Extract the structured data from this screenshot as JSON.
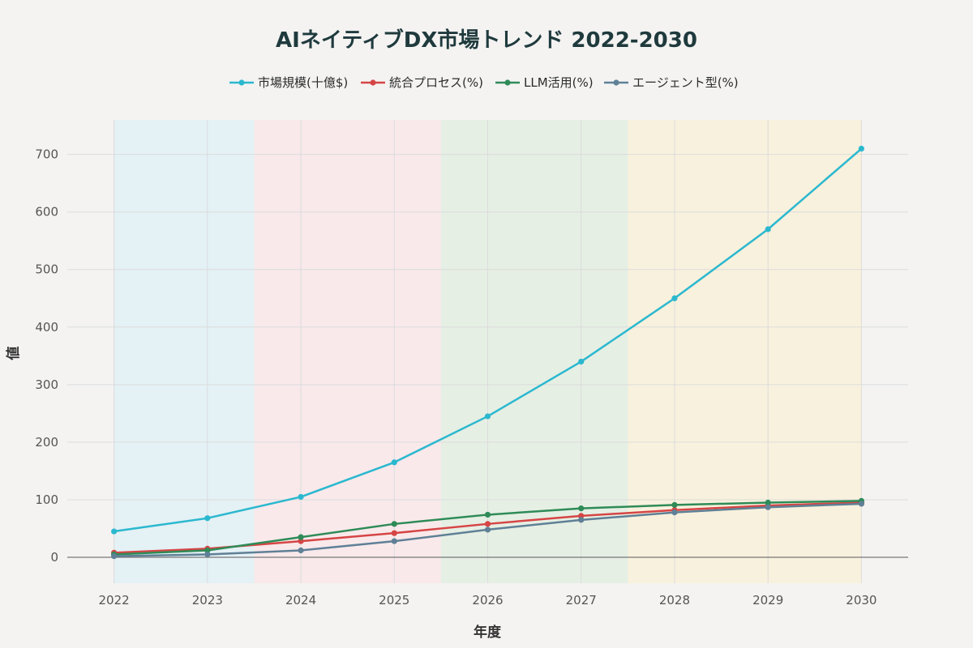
{
  "chart_data": {
    "type": "line",
    "title": "AIネイティブDX市場トレンド 2022-2030",
    "xlabel": "年度",
    "ylabel": "値",
    "x": [
      2022,
      2023,
      2024,
      2025,
      2026,
      2027,
      2028,
      2029,
      2030
    ],
    "x_tick_labels": [
      "2022",
      "2023",
      "2024",
      "2025",
      "2026",
      "2027",
      "2028",
      "2029",
      "2030"
    ],
    "ylim": [
      -45,
      760
    ],
    "y_ticks": [
      0,
      100,
      200,
      300,
      400,
      500,
      600,
      700
    ],
    "y_tick_labels": [
      "0",
      "100",
      "200",
      "300",
      "400",
      "500",
      "600",
      "700"
    ],
    "grid": true,
    "legend_position": "top-center",
    "series": [
      {
        "name": "市場規模(十億$)",
        "color": "#2bb8cf",
        "values": [
          45,
          68,
          105,
          165,
          245,
          340,
          450,
          570,
          710
        ]
      },
      {
        "name": "統合プロセス(%)",
        "color": "#d64545",
        "values": [
          8,
          15,
          28,
          42,
          58,
          72,
          82,
          90,
          95
        ]
      },
      {
        "name": "LLM活用(%)",
        "color": "#2e8b57",
        "values": [
          5,
          12,
          35,
          58,
          74,
          85,
          91,
          95,
          98
        ]
      },
      {
        "name": "エージェント型(%)",
        "color": "#5f8096",
        "values": [
          2,
          5,
          12,
          28,
          48,
          65,
          78,
          87,
          93
        ]
      }
    ],
    "background_bands": [
      {
        "from": 2022,
        "to": 2023.5,
        "color": "#dff0f5"
      },
      {
        "from": 2023.5,
        "to": 2025.5,
        "color": "#fbe6e8"
      },
      {
        "from": 2025.5,
        "to": 2027.5,
        "color": "#e2eedf"
      },
      {
        "from": 2027.5,
        "to": 2030,
        "color": "#faf0d6"
      }
    ]
  }
}
